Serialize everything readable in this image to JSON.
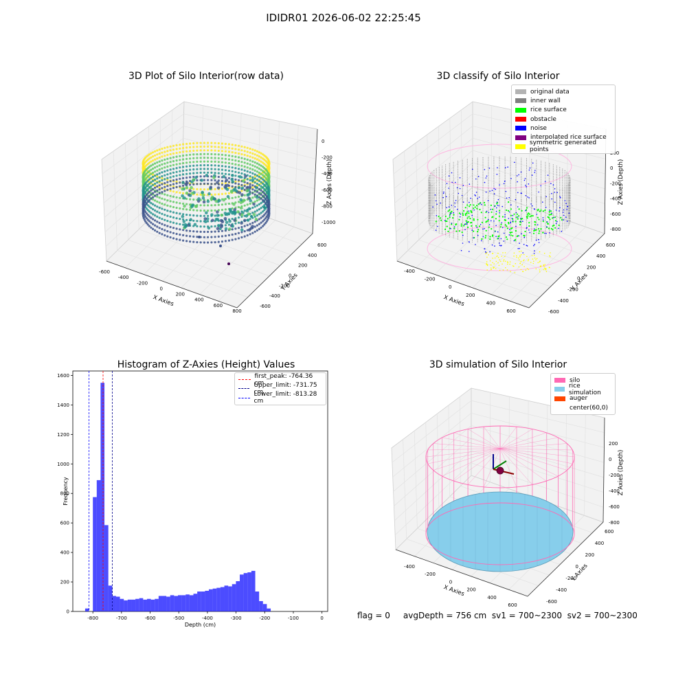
{
  "suptitle": "IDIDR01 2026-06-02 22:25:45",
  "panels": {
    "raw": {
      "title": "3D Plot of Silo Interior(row data)",
      "x_ticks": [
        "-600",
        "-400",
        "-200",
        "0",
        "200",
        "400",
        "600",
        "800"
      ],
      "y_ticks": [
        "-600",
        "-400",
        "-200",
        "0",
        "200",
        "400",
        "600"
      ],
      "z_ticks": [
        "0",
        "-200",
        "-400",
        "-600",
        "-800",
        "-1000"
      ],
      "xlabel": "X Axies",
      "ylabel": "Y Axies",
      "zlabel": "Z Axies (Depth)"
    },
    "classify": {
      "title": "3D classify of Silo Interior",
      "x_ticks": [
        "-400",
        "-200",
        "0",
        "200",
        "400",
        "600"
      ],
      "y_ticks": [
        "-600",
        "-400",
        "-200",
        "0",
        "200",
        "400",
        "600"
      ],
      "z_ticks": [
        "200",
        "0",
        "-200",
        "-400",
        "-600",
        "-800"
      ],
      "xlabel": "X Axies",
      "ylabel": "Y Axies",
      "zlabel": "Z Axies (Depth)",
      "legend": [
        {
          "label": "original data",
          "color": "#b3b3b3"
        },
        {
          "label": "inner wall",
          "color": "#808080"
        },
        {
          "label": "rice surface",
          "color": "#00ff00"
        },
        {
          "label": "obstacle",
          "color": "#ff0000"
        },
        {
          "label": "noise",
          "color": "#0000ff"
        },
        {
          "label": "interpolated rice surface",
          "color": "#800080"
        },
        {
          "label": "symmetric generated points",
          "color": "#ffff00"
        }
      ]
    },
    "simulation": {
      "title": "3D simulation of Silo Interior",
      "x_ticks": [
        "-400",
        "-200",
        "0",
        "200",
        "400",
        "600"
      ],
      "y_ticks": [
        "-600",
        "-400",
        "-200",
        "0",
        "200",
        "400",
        "600"
      ],
      "z_ticks": [
        "200",
        "0",
        "-200",
        "-400",
        "-600",
        "-800"
      ],
      "xlabel": "X Axies",
      "ylabel": "Y Axies",
      "zlabel": "Z Axies (Depth)",
      "legend": [
        {
          "label": "silo",
          "color": "#ff69b4"
        },
        {
          "label": "rice simulation",
          "color": "#87ceeb"
        },
        {
          "label": "auger",
          "color": "#ff4500"
        },
        {
          "label": "center(60,0)",
          "color": "#ffffff"
        }
      ]
    }
  },
  "status_text": "flag = 0     avgDepth = 756 cm  sv1 = 700~2300  sv2 = 700~2300",
  "chart_data": [
    {
      "type": "scatter",
      "title": "3D Plot of Silo Interior(row data)",
      "xlabel": "X Axies",
      "ylabel": "Y Axies",
      "zlabel": "Z Axies (Depth)",
      "xlim": [
        -600,
        900
      ],
      "ylim": [
        -700,
        700
      ],
      "zlim": [
        -1100,
        50
      ],
      "colormap": "viridis",
      "description_series": [
        {
          "name": "",
          "silo_radius_cm": 600,
          "depth_range": [
            -800,
            0
          ]
        }
      ]
    },
    {
      "type": "scatter",
      "title": "3D classify of Silo Interior",
      "xlabel": "X Axies",
      "ylabel": "Y Axies",
      "zlabel": "Z Axies (Depth)",
      "xlim": [
        -500,
        700
      ],
      "ylim": [
        -700,
        700
      ],
      "zlim": [
        -900,
        250
      ],
      "legend_position": "top-right",
      "series": [
        {
          "name": "original data",
          "color": "#b3b3b3"
        },
        {
          "name": "inner wall",
          "color": "#808080"
        },
        {
          "name": "rice surface",
          "color": "#00ff00"
        },
        {
          "name": "obstacle",
          "color": "#ff0000"
        },
        {
          "name": "noise",
          "color": "#0000ff"
        },
        {
          "name": "interpolated rice surface",
          "color": "#800080"
        },
        {
          "name": "symmetric generated points",
          "color": "#ffff00"
        }
      ]
    },
    {
      "type": "bar",
      "title": "Histogram of Z-Axies (Height) Values",
      "xlabel": "Depth (cm)",
      "ylabel": "Frequency",
      "xlim": [
        -870,
        20
      ],
      "ylim": [
        0,
        1630
      ],
      "x_ticks": [
        -800,
        -700,
        -600,
        -500,
        -400,
        -300,
        -200,
        -100,
        0
      ],
      "y_ticks": [
        0,
        200,
        400,
        600,
        800,
        1000,
        1200,
        1400,
        1600
      ],
      "bin_width": 13.5,
      "bin_edges_start": -827,
      "values": [
        20,
        0,
        775,
        890,
        1550,
        585,
        175,
        105,
        100,
        85,
        75,
        80,
        80,
        85,
        90,
        80,
        85,
        80,
        85,
        105,
        105,
        100,
        110,
        105,
        110,
        110,
        115,
        110,
        120,
        135,
        135,
        140,
        150,
        155,
        160,
        165,
        175,
        170,
        185,
        205,
        250,
        260,
        265,
        275,
        135,
        70,
        50,
        20
      ],
      "color": "#0000ff",
      "vlines": [
        {
          "name": "first_peak: -764.36 cm",
          "x": -764.36,
          "color": "#ff0000",
          "style": "dashed"
        },
        {
          "name": "Upper_limit: -731.75 cm",
          "x": -731.75,
          "color": "#00008b",
          "style": "dashed"
        },
        {
          "name": "Lower_limit: -813.28 cm",
          "x": -813.28,
          "color": "#0000ff",
          "style": "dashed"
        }
      ],
      "legend_position": "top-right"
    },
    {
      "type": "scatter",
      "title": "3D simulation of Silo Interior",
      "xlabel": "X Axies",
      "ylabel": "Y Axies",
      "zlabel": "Z Axies (Depth)",
      "xlim": [
        -500,
        700
      ],
      "ylim": [
        -700,
        700
      ],
      "zlim": [
        -850,
        300
      ],
      "legend_position": "top-right",
      "series": [
        {
          "name": "silo",
          "color": "#ff69b4"
        },
        {
          "name": "rice simulation",
          "color": "#87ceeb"
        },
        {
          "name": "auger",
          "color": "#ff4500"
        },
        {
          "name": "center(60,0)",
          "color": "#ffffff"
        }
      ]
    }
  ]
}
